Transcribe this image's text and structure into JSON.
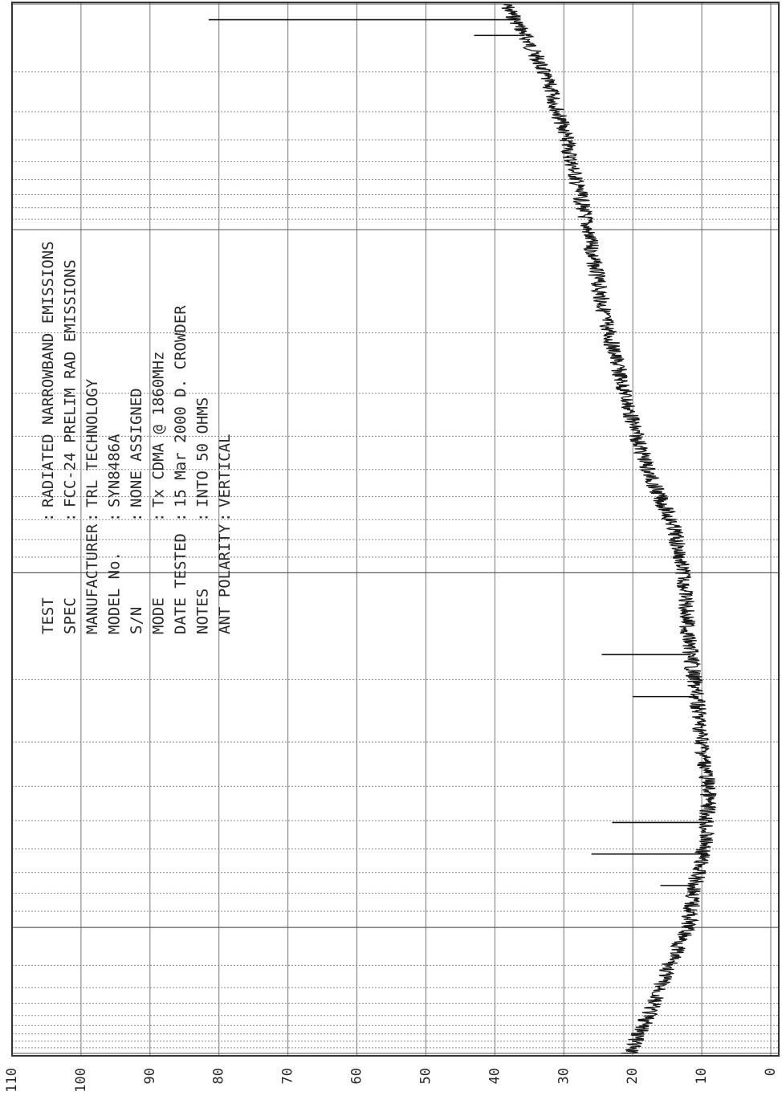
{
  "chart_data": {
    "type": "line",
    "orientation": "rotated-90",
    "grid": true,
    "ylim": [
      0,
      110
    ],
    "y_ticks": [
      "0",
      "10",
      "20",
      "30",
      "40",
      "50",
      "60",
      "70",
      "80",
      "90",
      "100",
      "110"
    ],
    "x_scale": "log",
    "x_ticks_unlabeled": true,
    "x": [
      0.0,
      0.02,
      0.05,
      0.08,
      0.12,
      0.16,
      0.2,
      0.25,
      0.3,
      0.35,
      0.4,
      0.45,
      0.5,
      0.55,
      0.6,
      0.65,
      0.7,
      0.75,
      0.8,
      0.84,
      0.88,
      0.92,
      0.96,
      1.0
    ],
    "series": [
      {
        "values": [
          38.5,
          36.5,
          34,
          32,
          30,
          28.5,
          27,
          25.5,
          24,
          22,
          20,
          17.5,
          14,
          12.5,
          12,
          11,
          10,
          9,
          9.5,
          11,
          12,
          15,
          17.5,
          20.5
        ]
      }
    ],
    "spikes": [
      {
        "x": 0.015,
        "value": 81.5
      },
      {
        "x": 0.03,
        "value": 43
      },
      {
        "x": 0.62,
        "value": 24.5
      },
      {
        "x": 0.66,
        "value": 20
      },
      {
        "x": 0.78,
        "value": 23
      },
      {
        "x": 0.81,
        "value": 26
      },
      {
        "x": 0.84,
        "value": 16
      }
    ],
    "header": {
      "rows": [
        {
          "label": "TEST",
          "value": "RADIATED NARROWBAND EMISSIONS"
        },
        {
          "label": "SPEC",
          "value": "FCC-24 PRELIM RAD EMISSIONS"
        },
        {
          "label": "MANUFACTURER",
          "value": "TRL TECHNOLOGY"
        },
        {
          "label": "MODEL No.",
          "value": "SYN8486A"
        },
        {
          "label": "S/N",
          "value": "NONE ASSIGNED"
        },
        {
          "label": "MODE",
          "value": "Tx CDMA @ 1860MHz"
        },
        {
          "label": "DATE TESTED",
          "value": "15 Mar 2000  D. CROWDER"
        },
        {
          "label": "NOTES",
          "value": "INTO 50 OHMS"
        },
        {
          "label": "ANT POLARITY",
          "value": "VERTICAL"
        }
      ]
    }
  }
}
